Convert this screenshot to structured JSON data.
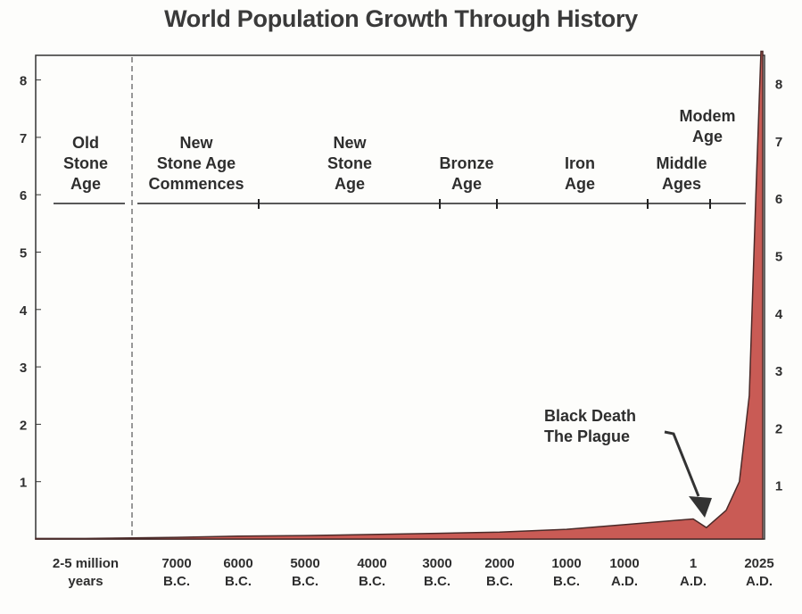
{
  "chart_data": {
    "type": "area",
    "title": "World Population Growth Through History",
    "xlabel": "",
    "ylabel": "",
    "ylim": [
      0,
      8.5
    ],
    "y_ticks": [
      "1",
      "2",
      "3",
      "4",
      "5",
      "6",
      "7",
      "8"
    ],
    "grid": false,
    "fill_color": "#c95b55",
    "categories": [
      [
        "2-5 million",
        "years"
      ],
      [
        "7000",
        "B.C."
      ],
      [
        "6000",
        "B.C."
      ],
      [
        "5000",
        "B.C."
      ],
      [
        "4000",
        "B.C."
      ],
      [
        "3000",
        "B.C."
      ],
      [
        "2000",
        "B.C."
      ],
      [
        "1000",
        "B.C."
      ],
      [
        "1000",
        "A.D."
      ],
      [
        "1",
        "A.D."
      ],
      [
        "2025",
        "A.D."
      ]
    ],
    "series": [
      {
        "points": [
          {
            "x": 0,
            "y": 0.01
          },
          {
            "x": 1,
            "y": 0.03
          },
          {
            "x": 2,
            "y": 0.05
          },
          {
            "x": 3,
            "y": 0.06
          },
          {
            "x": 4,
            "y": 0.08
          },
          {
            "x": 5,
            "y": 0.1
          },
          {
            "x": 6,
            "y": 0.12
          },
          {
            "x": 7,
            "y": 0.17
          },
          {
            "x": 8,
            "y": 0.25
          },
          {
            "x": 9,
            "y": 0.35
          },
          {
            "x": 9.2,
            "y": 0.2
          },
          {
            "x": 9.5,
            "y": 0.5
          },
          {
            "x": 9.7,
            "y": 1.0
          },
          {
            "x": 9.85,
            "y": 2.5
          },
          {
            "x": 9.95,
            "y": 6.0
          },
          {
            "x": 10,
            "y": 8.5
          }
        ]
      }
    ],
    "eras": [
      {
        "lines": [
          "Old",
          "Stone",
          "Age"
        ],
        "at": 0
      },
      {
        "lines": [
          "New",
          "Stone Age",
          "Commences"
        ],
        "at": 1.3
      },
      {
        "lines": [
          "New",
          "Stone",
          "Age"
        ],
        "at": 3.7
      },
      {
        "lines": [
          "Bronze",
          "Age"
        ],
        "at": 5.45
      },
      {
        "lines": [
          "Iron",
          "Age"
        ],
        "at": 7.2
      },
      {
        "lines": [
          "Middle",
          "Ages"
        ],
        "at": 8.8
      },
      {
        "lines": [
          "Modem",
          "Age"
        ],
        "at": 9.2
      }
    ],
    "annotation": {
      "lines": [
        "Black Death",
        "The Plague"
      ],
      "target_x": 9.2
    }
  }
}
